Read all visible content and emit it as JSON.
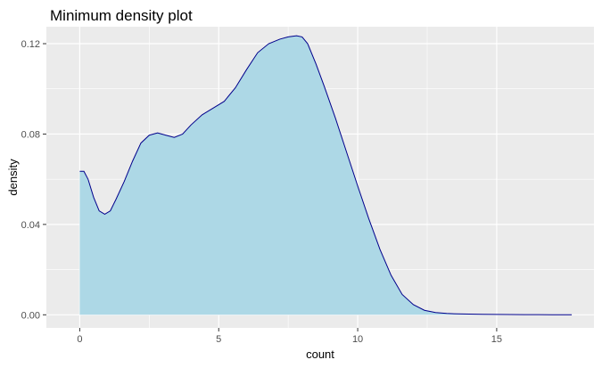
{
  "chart_data": {
    "type": "area",
    "title": "Minimum density plot",
    "xlabel": "count",
    "ylabel": "density",
    "xlim": [
      -1.2,
      18.5
    ],
    "ylim": [
      -0.0058,
      0.1275
    ],
    "x_ticks": [
      0,
      5,
      10,
      15
    ],
    "x_tick_labels": [
      "0",
      "5",
      "10",
      "15"
    ],
    "y_ticks": [
      0.0,
      0.04,
      0.08,
      0.12
    ],
    "y_tick_labels": [
      "0.00",
      "0.04",
      "0.08",
      "0.12"
    ],
    "grid": true,
    "legend": "none",
    "series": [
      {
        "x": [
          0,
          0.15,
          0.3,
          0.5,
          0.7,
          0.9,
          1.1,
          1.3,
          1.6,
          1.9,
          2.2,
          2.5,
          2.8,
          3.1,
          3.4,
          3.7,
          4.0,
          4.4,
          4.8,
          5.2,
          5.6,
          6.0,
          6.4,
          6.8,
          7.2,
          7.5,
          7.8,
          8.0,
          8.2,
          8.5,
          8.8,
          9.2,
          9.6,
          10.0,
          10.4,
          10.8,
          11.2,
          11.6,
          12.0,
          12.4,
          12.8,
          13.2,
          13.6,
          14.0,
          14.5,
          15.0,
          15.5,
          16.0,
          16.5,
          17.0,
          17.7
        ],
        "y": [
          0.0635,
          0.0635,
          0.06,
          0.052,
          0.046,
          0.0445,
          0.046,
          0.051,
          0.059,
          0.068,
          0.076,
          0.0795,
          0.0805,
          0.0795,
          0.0785,
          0.08,
          0.084,
          0.0885,
          0.0915,
          0.0945,
          0.1005,
          0.1085,
          0.116,
          0.12,
          0.122,
          0.123,
          0.1235,
          0.123,
          0.12,
          0.111,
          0.101,
          0.087,
          0.072,
          0.057,
          0.0425,
          0.029,
          0.0175,
          0.009,
          0.0045,
          0.002,
          0.001,
          0.0006,
          0.0004,
          0.0003,
          0.0002,
          0.00015,
          0.0001,
          8e-05,
          5e-05,
          3e-05,
          2e-05
        ]
      }
    ],
    "colors": {
      "fill": "#ADD8E6",
      "line": "#00008B",
      "panel": "#EBEBEB",
      "grid_major": "#FFFFFF",
      "tick": "#333333"
    }
  }
}
